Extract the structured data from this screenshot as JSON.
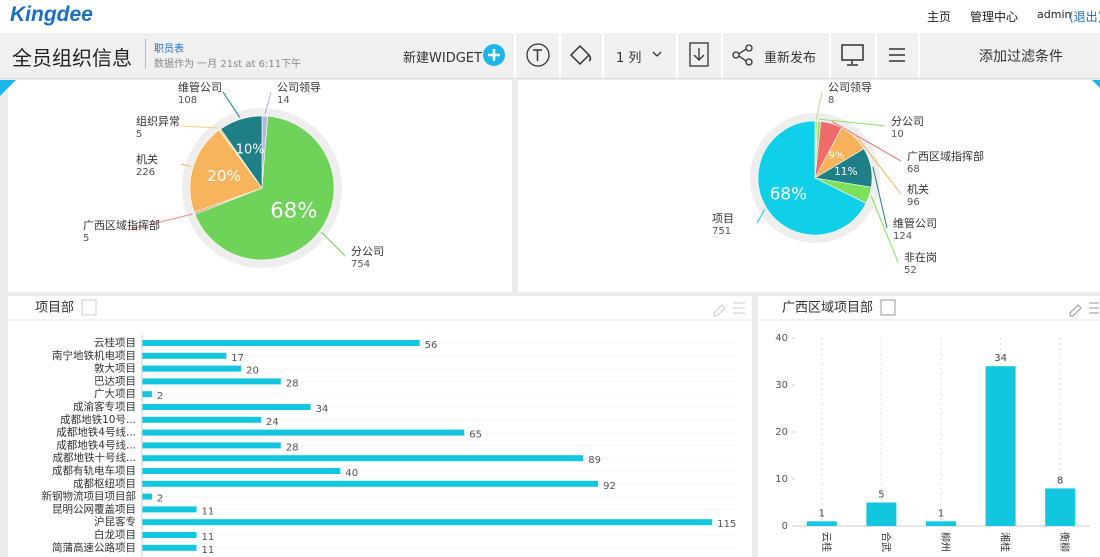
{
  "header": {
    "logo": "Kingdee",
    "nav": [
      "主页",
      "管理中心",
      "admin",
      "(退出)"
    ]
  },
  "toolbar": {
    "title": "全员组织信息",
    "source": "职员表",
    "timestamp": "数据作为 一月 21st at 6:11下午",
    "new_widget": "新建WIDGET",
    "columns": "1 列",
    "republish": "重新发布",
    "add_filter": "添加过滤条件"
  },
  "chart_data": [
    {
      "type": "pie",
      "categories": [
        "公司领导",
        "分公司",
        "广西区域指挥部",
        "机关",
        "组织异常",
        "维管公司"
      ],
      "values": [
        14,
        754,
        5,
        226,
        5,
        108
      ],
      "percent_labels": [
        null,
        "68%",
        null,
        "20%",
        null,
        "10%"
      ],
      "colors": [
        "#b9b3e0",
        "#6fd35a",
        "#f08a8a",
        "#f8b45c",
        "#f3d27a",
        "#1e7f87"
      ]
    },
    {
      "type": "pie",
      "categories": [
        "公司领导",
        "分公司",
        "广西区域指挥部",
        "机关",
        "维管公司",
        "非在岗",
        "项目"
      ],
      "values": [
        8,
        10,
        68,
        96,
        124,
        52,
        751
      ],
      "percent_labels": [
        null,
        null,
        null,
        "9%",
        "11%",
        null,
        "68%"
      ],
      "colors": [
        "#b5e08a",
        "#8ee06a",
        "#f06b6b",
        "#f7b25a",
        "#1f7f86",
        "#7de05a",
        "#10cfe8"
      ]
    },
    {
      "type": "bar",
      "orientation": "horizontal",
      "title": "项目部",
      "categories": [
        "云桂项目",
        "南宁地铁机电项目",
        "敦大项目",
        "巴达项目",
        "广大项目",
        "成渝客专项目",
        "成都地铁10号...",
        "成都地铁4号线...",
        "成都地铁4号线...",
        "成都地铁十号线...",
        "成都有轨电车项目",
        "成都枢纽项目",
        "新钢物流项目项目部",
        "昆明公网覆盖项目",
        "沪昆客专",
        "白龙项目",
        "简蒲高速公路项目"
      ],
      "values": [
        56,
        17,
        20,
        28,
        2,
        34,
        24,
        65,
        28,
        89,
        40,
        92,
        2,
        11,
        115,
        11,
        11
      ],
      "xlim": [
        0,
        120
      ],
      "color": "#13c6e0"
    },
    {
      "type": "bar",
      "orientation": "vertical",
      "title": "广西区域项目部",
      "categories": [
        "云桂",
        "合武",
        "柳州",
        "湘桂",
        "衡柳"
      ],
      "values": [
        1,
        5,
        1,
        34,
        8
      ],
      "ylim": [
        0,
        40
      ],
      "yticks": [
        0,
        10,
        20,
        30,
        40
      ],
      "color": "#13c6e0"
    }
  ]
}
